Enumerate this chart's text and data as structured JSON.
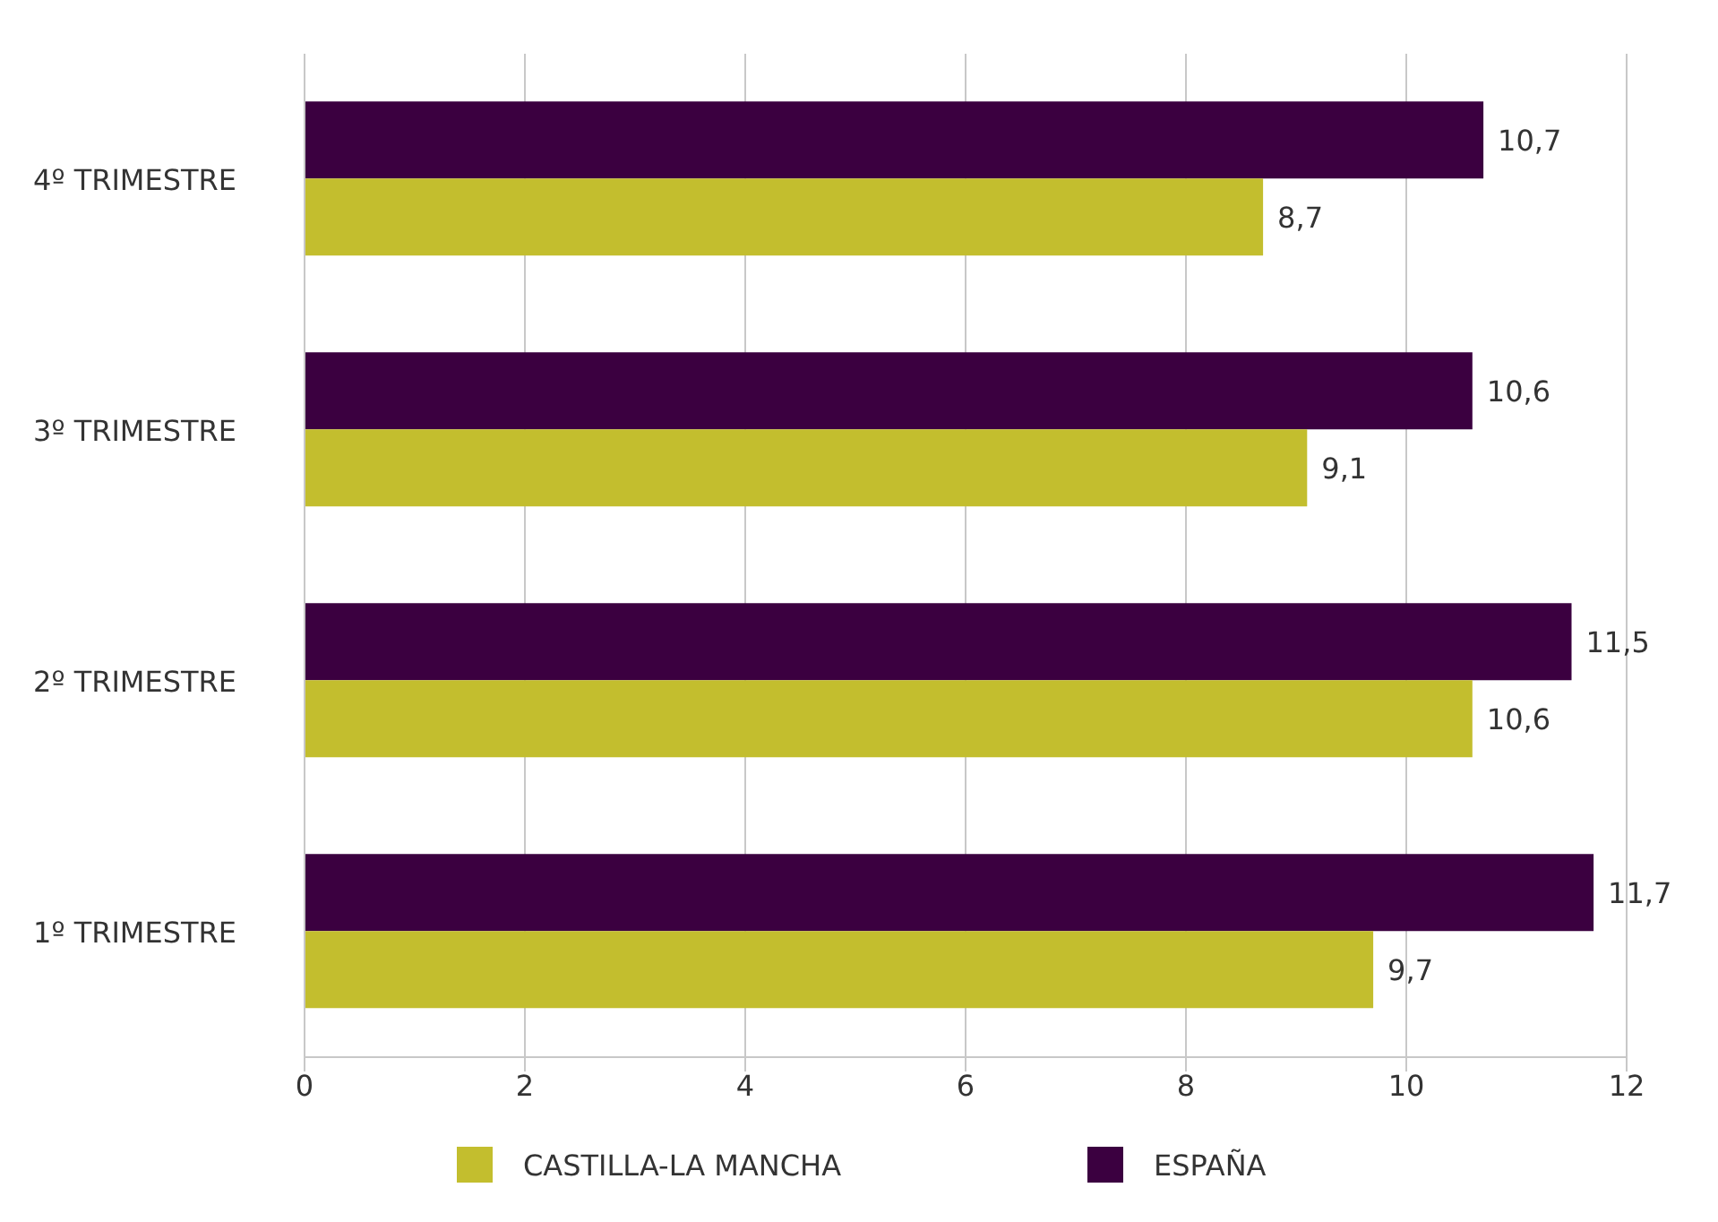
{
  "chart_data": {
    "type": "bar",
    "orientation": "horizontal",
    "categories": [
      "4º TRIMESTRE",
      "3º TRIMESTRE",
      "2º TRIMESTRE",
      "1º TRIMESTRE"
    ],
    "series": [
      {
        "name": "CASTILLA-LA MANCHA",
        "color": "#c3be2e",
        "values": [
          8.7,
          9.1,
          10.6,
          9.7
        ],
        "value_labels": [
          "8,7",
          "9,1",
          "10,6",
          "9,7"
        ]
      },
      {
        "name": "ESPAÑA",
        "color": "#3b0040",
        "values": [
          10.7,
          10.6,
          11.5,
          11.7
        ],
        "value_labels": [
          "10,7",
          "10,6",
          "11,5",
          "11,7"
        ]
      }
    ],
    "xlim": [
      0,
      12
    ],
    "xticks": [
      0,
      2,
      4,
      6,
      8,
      10,
      12
    ],
    "grid": "x",
    "legend": "bottom"
  }
}
